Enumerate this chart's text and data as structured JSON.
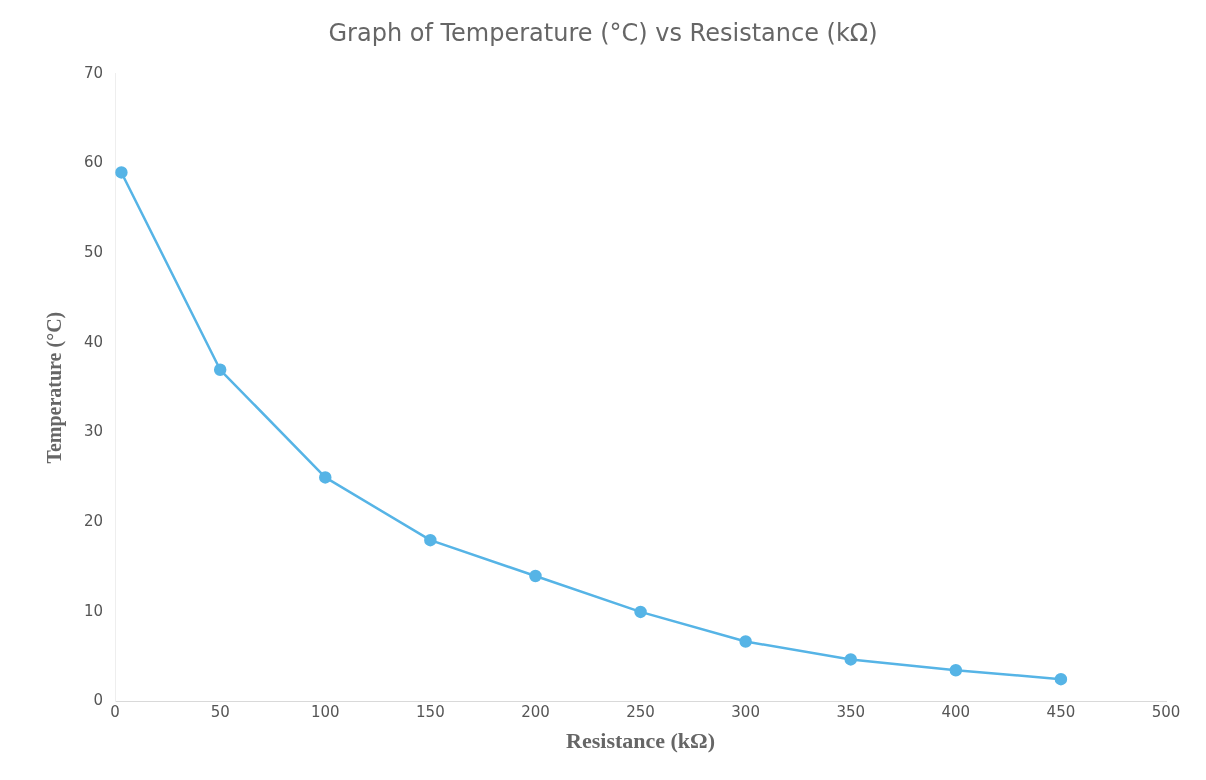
{
  "chart_data": {
    "type": "line",
    "title": "Graph of Temperature (°C) vs Resistance (kΩ)",
    "xlabel": "Resistance (kΩ)",
    "ylabel": "Temperature (°C)",
    "x": [
      3,
      50,
      100,
      150,
      200,
      250,
      300,
      350,
      400,
      450
    ],
    "series": [
      {
        "color": "#56b4e6",
        "values": [
          59,
          37,
          25,
          18,
          14,
          10,
          6.7,
          4.7,
          3.5,
          2.5
        ]
      }
    ],
    "xlim": [
      0,
      500
    ],
    "xticks": [
      0,
      50,
      100,
      150,
      200,
      250,
      300,
      350,
      400,
      450,
      500
    ],
    "ylim": [
      0,
      70
    ],
    "yticks": [
      0,
      10,
      20,
      30,
      40,
      50,
      60,
      70
    ],
    "grid": false,
    "legend": false,
    "marker": "circle",
    "line_style": "solid"
  }
}
